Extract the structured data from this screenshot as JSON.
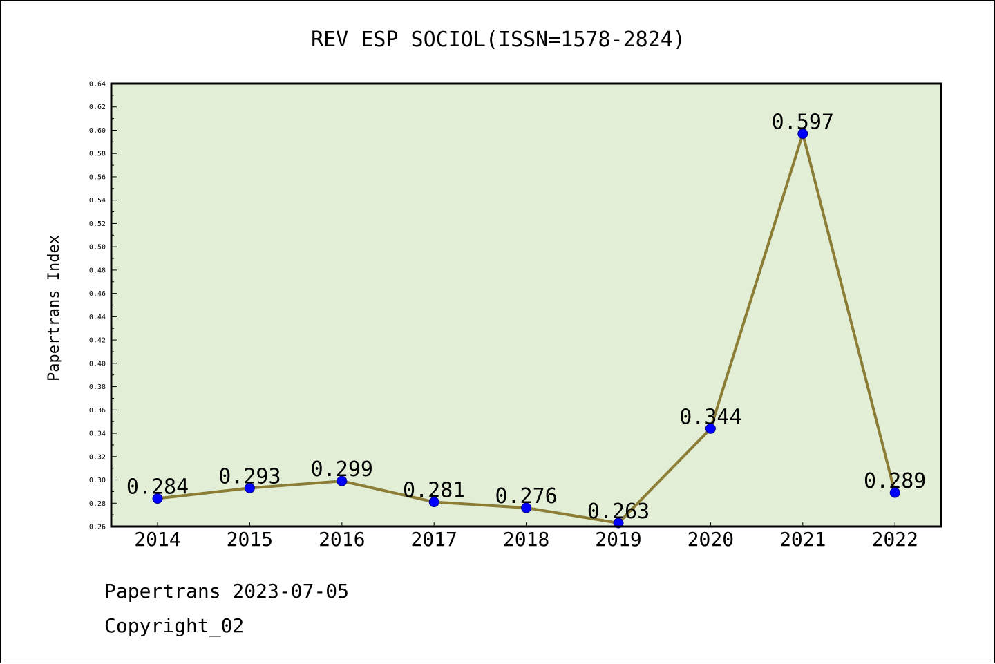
{
  "chart_data": {
    "type": "line",
    "title": "REV ESP SOCIOL(ISSN=1578-2824)",
    "xlabel": "",
    "ylabel": "Papertrans Index",
    "categories": [
      "2014",
      "2015",
      "2016",
      "2017",
      "2018",
      "2019",
      "2020",
      "2021",
      "2022"
    ],
    "series": [
      {
        "values": [
          0.284,
          0.293,
          0.299,
          0.281,
          0.276,
          0.263,
          0.344,
          0.597,
          0.289
        ]
      }
    ],
    "data_labels": [
      "0.284",
      "0.293",
      "0.299",
      "0.281",
      "0.276",
      "0.263",
      "0.344",
      "0.597",
      "0.289"
    ],
    "ylim": [
      0.26,
      0.64
    ],
    "yticks": [
      "0.26",
      "0.28",
      "0.30",
      "0.32",
      "0.34",
      "0.36",
      "0.38",
      "0.40",
      "0.42",
      "0.44",
      "0.46",
      "0.48",
      "0.50",
      "0.52",
      "0.54",
      "0.56",
      "0.58",
      "0.60",
      "0.62",
      "0.64"
    ],
    "grid": false,
    "colors": {
      "plot_background": "#e2efd6",
      "line": "#8b7d35",
      "marker": "#0000ff",
      "marker_edge": "#00008b"
    }
  },
  "footer": {
    "line1": "Papertrans 2023-07-05",
    "line2": "Copyright_02"
  }
}
